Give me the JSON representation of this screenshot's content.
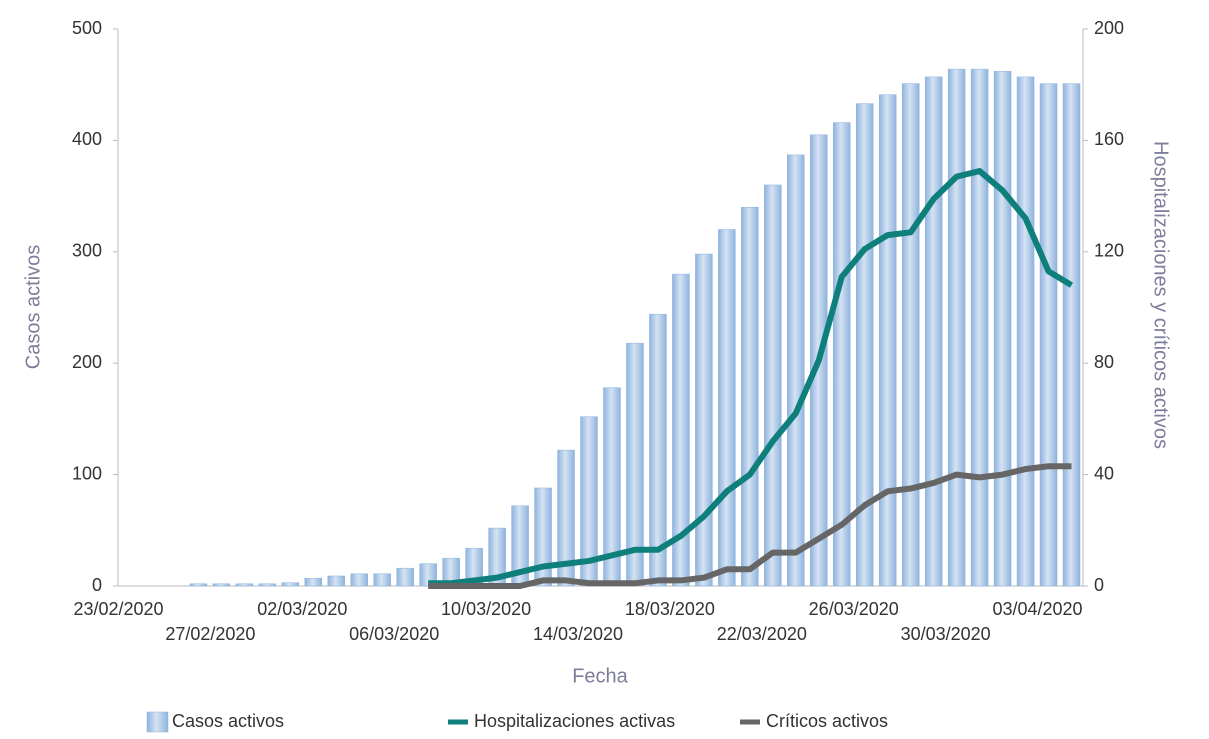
{
  "chart_data": {
    "type": "bar-line",
    "xlabel": "Fecha",
    "ylabel": "Casos activos",
    "y2label": "Hospitalizaciones y críticos activos",
    "categories": [
      "23/02/2020",
      null,
      null,
      null,
      "27/02/2020",
      null,
      null,
      null,
      "02/03/2020",
      null,
      null,
      null,
      "06/03/2020",
      null,
      null,
      null,
      "10/03/2020",
      null,
      null,
      null,
      "14/03/2020",
      null,
      null,
      null,
      "18/03/2020",
      null,
      null,
      null,
      "22/03/2020",
      null,
      null,
      null,
      "26/03/2020",
      null,
      null,
      null,
      "30/03/2020",
      null,
      null,
      null,
      "03/04/2020",
      null
    ],
    "ylim": [
      0,
      500
    ],
    "yticks": [
      0,
      100,
      200,
      300,
      400,
      500
    ],
    "y2lim": [
      0,
      200
    ],
    "y2ticks": [
      0,
      40,
      80,
      120,
      160,
      200
    ],
    "series": [
      {
        "name": "Casos activos",
        "type": "bar",
        "color": "#8fb3dd",
        "values": [
          0,
          0,
          0,
          2,
          2,
          2,
          2,
          3,
          7,
          9,
          11,
          11,
          16,
          20,
          25,
          34,
          52,
          72,
          88,
          122,
          152,
          178,
          218,
          244,
          280,
          298,
          320,
          340,
          360,
          387,
          405,
          416,
          433,
          441,
          451,
          457,
          464,
          464,
          462,
          457,
          451,
          451
        ]
      },
      {
        "name": "Hospitalizaciones activas",
        "type": "line",
        "axis": "y2",
        "color": "#0e7f7a",
        "values": [
          null,
          null,
          null,
          null,
          null,
          null,
          null,
          null,
          null,
          null,
          null,
          null,
          null,
          1,
          1,
          2,
          3,
          5,
          7,
          8,
          9,
          11,
          13,
          13,
          18,
          25,
          34,
          40,
          52,
          62,
          81,
          111,
          121,
          126,
          127,
          139,
          147,
          149,
          142,
          132,
          113,
          108
        ]
      },
      {
        "name": "Críticos activos",
        "type": "line",
        "axis": "y2",
        "color": "#666666",
        "values": [
          null,
          null,
          null,
          null,
          null,
          null,
          null,
          null,
          null,
          null,
          null,
          null,
          null,
          0,
          0,
          0,
          0,
          0,
          2,
          2,
          1,
          1,
          1,
          2,
          2,
          3,
          6,
          6,
          12,
          12,
          17,
          22,
          29,
          34,
          35,
          37,
          40,
          39,
          40,
          42,
          43,
          43
        ]
      }
    ]
  }
}
